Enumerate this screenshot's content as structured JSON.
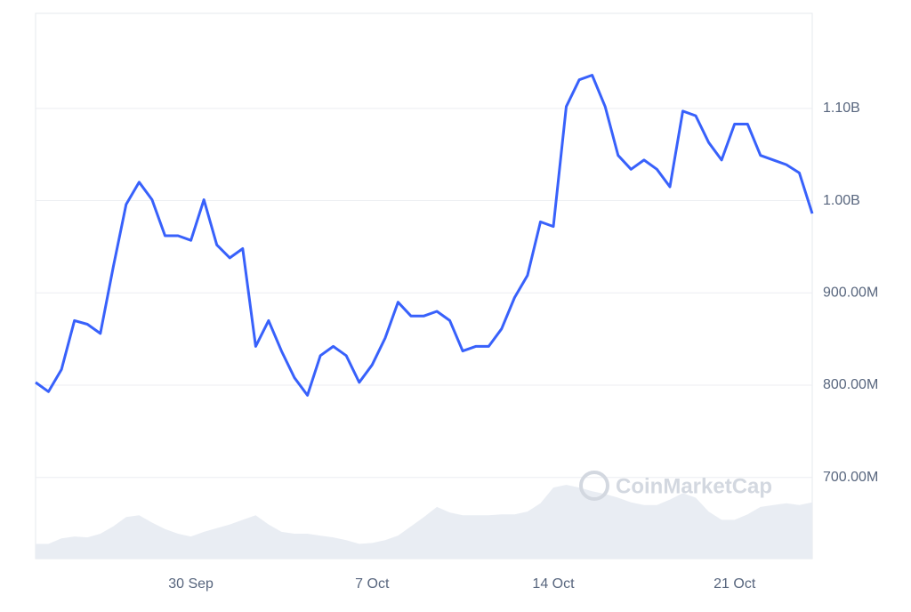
{
  "chart_data": {
    "type": "line",
    "watermark": "CoinMarketCap",
    "categories": [
      null,
      null,
      null,
      null,
      null,
      null,
      null,
      null,
      null,
      null,
      null,
      null,
      "30 Sep",
      null,
      null,
      null,
      null,
      null,
      null,
      null,
      null,
      null,
      null,
      null,
      null,
      null,
      "7 Oct",
      null,
      null,
      null,
      null,
      null,
      null,
      null,
      null,
      null,
      null,
      null,
      null,
      null,
      "14 Oct",
      null,
      null,
      null,
      null,
      null,
      null,
      null,
      null,
      null,
      null,
      null,
      null,
      null,
      "21 Oct",
      null,
      null,
      null,
      null,
      null,
      null
    ],
    "series": [
      {
        "color": "#3861fb",
        "values": [
          803000000,
          793000000,
          817000000,
          870000000,
          866000000,
          856000000,
          928000000,
          996000000,
          1020000000,
          1001000000,
          962000000,
          962000000,
          957000000,
          1001000000,
          952000000,
          938000000,
          948000000,
          842000000,
          870000000,
          837000000,
          808000000,
          789000000,
          832000000,
          842000000,
          832000000,
          803000000,
          822000000,
          851000000,
          890000000,
          875000000,
          875000000,
          880000000,
          870000000,
          837000000,
          842000000,
          842000000,
          861000000,
          895000000,
          919000000,
          977000000,
          972000000,
          1102000000,
          1131000000,
          1136000000,
          1102000000,
          1049000000,
          1034000000,
          1044000000,
          1034000000,
          1015000000,
          1097000000,
          1092000000,
          1063000000,
          1044000000,
          1083000000,
          1083000000,
          1049000000,
          1044000000,
          1039000000,
          1030000000,
          986000000
        ]
      },
      {
        "color": "#e9edf3",
        "area": true,
        "values": [
          628000000,
          628000000,
          634000000,
          636000000,
          635000000,
          639000000,
          647000000,
          657000000,
          659000000,
          651000000,
          644000000,
          639000000,
          636000000,
          641000000,
          645000000,
          649000000,
          654000000,
          659000000,
          649000000,
          641000000,
          639000000,
          639000000,
          637000000,
          635000000,
          632000000,
          628000000,
          629000000,
          632000000,
          637000000,
          647000000,
          657000000,
          668000000,
          662000000,
          659000000,
          659000000,
          659000000,
          660000000,
          660000000,
          663000000,
          672000000,
          689000000,
          692000000,
          689000000,
          685000000,
          682000000,
          678000000,
          673000000,
          670000000,
          670000000,
          676000000,
          683000000,
          678000000,
          663000000,
          654000000,
          654000000,
          660000000,
          668000000,
          670000000,
          672000000,
          670000000,
          673000000
        ]
      }
    ],
    "ylim": [
      612000000,
      1203000000
    ],
    "yticks": [
      {
        "value": 700000000,
        "label": "700.00M"
      },
      {
        "value": 800000000,
        "label": "800.00M"
      },
      {
        "value": 900000000,
        "label": "900.00M"
      },
      {
        "value": 1000000000,
        "label": "1.00B"
      },
      {
        "value": 1100000000,
        "label": "1.10B"
      }
    ],
    "grid": true
  }
}
